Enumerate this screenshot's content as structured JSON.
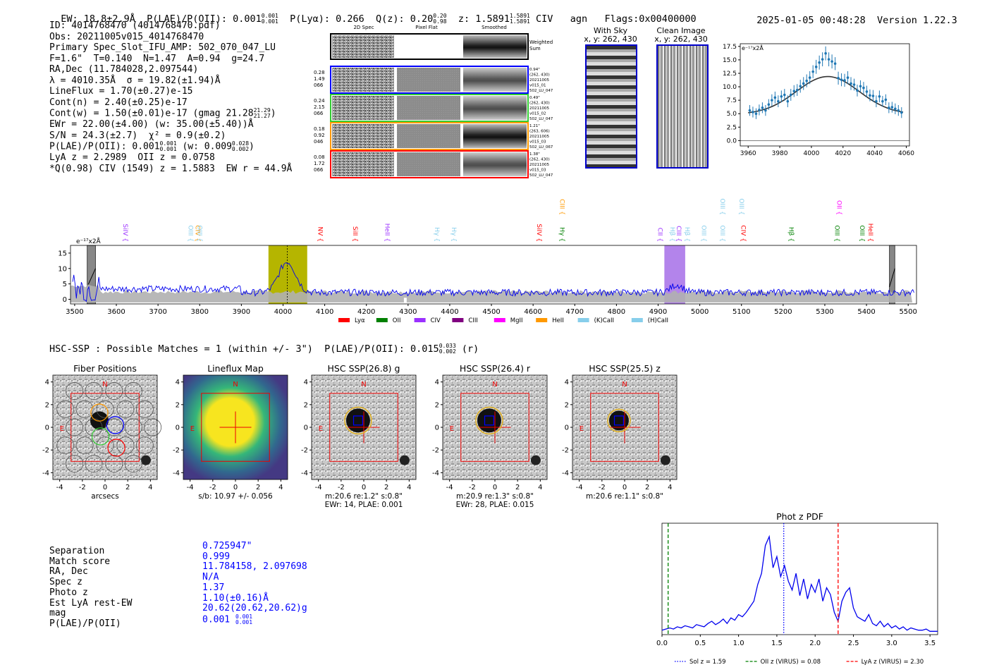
{
  "header": {
    "left": "EW: 18.8±2.9Å  P(LAE)/P(OII): 0.001",
    "plae_sup": "0.001",
    "plae_sub": "0.001",
    "lya": "  P(Lyα): 0.266  Q(z): 0.20",
    "qz_sup": "0.20",
    "qz_sub": "0.98",
    "z": "  z: 1.5891",
    "z_sup": "1.5891",
    "z_sub": "1.5891",
    "tail": " CIV   agn   Flags:0x00400000",
    "timestamp": "2025-01-05 00:48:28",
    "version": "Version 1.22.3"
  },
  "info": {
    "l1": "ID: 4014768470 (4014768470.pdf)",
    "l2": "Obs: 20211005v015_4014768470",
    "l3": "Primary Spec_Slot_IFU_AMP: 502_070_047_LU",
    "l4": "F=1.6\"  T=0.140  N=1.47  A=0.94  g=24.7",
    "l5": "RA,Dec (11.784028,2.097544)",
    "l6": "λ = 4010.35Å  σ = 19.82(±1.94)Å",
    "l7": "LineFlux = 1.70(±0.27)e-15",
    "l8": "Cont(n) = 2.40(±0.25)e-17",
    "l9": "Cont(w) = 1.50(±0.01)e-17 (gmag 21.28",
    "l9_sup": "21.29",
    "l9_sub": "21.27",
    "l10": "EWr = 22.00(±4.00) (w: 35.00(±5.40))Å",
    "l11": "S/N = 24.3(±2.7)  χ² = 0.9(±0.2)",
    "l12": "P(LAE)/P(OII): 0.001",
    "l12_sup": "0.001",
    "l12_sub": "0.001",
    "l12b": " (w: 0.009",
    "l12b_sup": "0.028",
    "l12b_sub": "0.002",
    "l13": "LyA z = 2.2989  OII z = 0.0758",
    "l14": "*Q(0.98) CIV (1549) z = 1.5883  EW r = 44.9Å"
  },
  "fiber_grid": {
    "col_headers": [
      "2D Spec",
      "Pixel Flat",
      "Smoothed"
    ],
    "weighted_label": "Weighted\nSum",
    "rows": [
      {
        "color": "#0000ff",
        "left": [
          "0.28",
          "1.49",
          "066"
        ],
        "right": [
          "0.94\"",
          "(262, 430)",
          "20211005",
          "v015_01",
          "502_LU_047"
        ]
      },
      {
        "color": "#33cc33",
        "left": [
          "0.24",
          "2.15",
          "066"
        ],
        "right": [
          "0.49\"",
          "(262, 430)",
          "20211005",
          "v015_02",
          "502_LU_047"
        ]
      },
      {
        "color": "#ff9900",
        "left": [
          "0.18",
          "0.92",
          "046"
        ],
        "right": [
          "1.21\"",
          "(263, 606)",
          "20211005",
          "v015_03",
          "502_LU_067"
        ]
      },
      {
        "color": "#ff0000",
        "left": [
          "0.08",
          "1.72",
          "066"
        ],
        "right": [
          "1.38\"",
          "(262, 430)",
          "20211005",
          "v015_03",
          "502_LU_047"
        ]
      }
    ]
  },
  "cutouts": {
    "with_sky": {
      "title": "With Sky",
      "coords": "x, y: 262, 430"
    },
    "clean": {
      "title": "Clean Image",
      "coords": "x, y: 262, 430"
    }
  },
  "line_fit": {
    "unit": "e⁻¹⁷x2Å",
    "xlim": [
      3955,
      4062
    ],
    "ylim": [
      -1,
      18
    ],
    "xticks": [
      3960,
      3980,
      4000,
      4020,
      4040,
      4060
    ],
    "yticks": [
      0.0,
      2.5,
      5.0,
      7.5,
      10.0,
      12.5,
      15.0,
      17.5
    ],
    "ytick_labels": [
      "0.0",
      "2.5",
      "5.0",
      "7.5",
      "10.0",
      "12.5",
      "15.0",
      "17.5"
    ],
    "model": {
      "amp": 7.0,
      "mu": 4010.35,
      "sigma": 19.82,
      "base": 4.9
    },
    "points": [
      [
        3961,
        5.6,
        1.0
      ],
      [
        3963,
        5.3,
        1.0
      ],
      [
        3965,
        5.0,
        1.0
      ],
      [
        3967,
        5.7,
        1.0
      ],
      [
        3969,
        6.1,
        1.0
      ],
      [
        3971,
        5.6,
        1.0
      ],
      [
        3973,
        6.7,
        1.0
      ],
      [
        3975,
        7.5,
        1.1
      ],
      [
        3977,
        8.0,
        1.1
      ],
      [
        3979,
        7.3,
        1.1
      ],
      [
        3981,
        8.2,
        1.1
      ],
      [
        3983,
        8.5,
        1.1
      ],
      [
        3985,
        7.3,
        1.1
      ],
      [
        3987,
        8.5,
        1.1
      ],
      [
        3989,
        9.2,
        1.1
      ],
      [
        3991,
        9.4,
        1.1
      ],
      [
        3993,
        10.1,
        1.2
      ],
      [
        3995,
        10.6,
        1.2
      ],
      [
        3997,
        11.1,
        1.2
      ],
      [
        3999,
        11.7,
        1.2
      ],
      [
        4001,
        12.8,
        1.2
      ],
      [
        4003,
        13.7,
        1.3
      ],
      [
        4005,
        14.5,
        1.3
      ],
      [
        4007,
        15.1,
        1.3
      ],
      [
        4009,
        16.2,
        1.3
      ],
      [
        4011,
        15.1,
        1.3
      ],
      [
        4013,
        14.7,
        1.3
      ],
      [
        4015,
        14.3,
        1.2
      ],
      [
        4017,
        11.6,
        1.2
      ],
      [
        4019,
        11.3,
        1.2
      ],
      [
        4021,
        11.2,
        1.2
      ],
      [
        4023,
        11.7,
        1.2
      ],
      [
        4025,
        10.6,
        1.2
      ],
      [
        4027,
        10.4,
        1.1
      ],
      [
        4029,
        9.3,
        1.1
      ],
      [
        4031,
        10.1,
        1.1
      ],
      [
        4033,
        9.8,
        1.1
      ],
      [
        4035,
        9.1,
        1.1
      ],
      [
        4037,
        8.4,
        1.1
      ],
      [
        4039,
        8.3,
        1.1
      ],
      [
        4041,
        7.3,
        1.1
      ],
      [
        4043,
        8.2,
        1.1
      ],
      [
        4045,
        7.3,
        1.0
      ],
      [
        4047,
        7.6,
        1.0
      ],
      [
        4049,
        6.1,
        1.0
      ],
      [
        4051,
        6.2,
        1.0
      ],
      [
        4053,
        5.9,
        1.0
      ],
      [
        4055,
        5.6,
        1.0
      ],
      [
        4057,
        5.2,
        1.0
      ]
    ]
  },
  "full_spectrum": {
    "unit": "e⁻¹⁷x2Å",
    "xlim": [
      3490,
      5520
    ],
    "ylim": [
      -1.5,
      17.5
    ],
    "xticks": [
      3500,
      3600,
      3700,
      3800,
      3900,
      4000,
      4100,
      4200,
      4300,
      4400,
      4500,
      4600,
      4700,
      4800,
      4900,
      5000,
      5100,
      5200,
      5300,
      5400,
      5500
    ],
    "yticks": [
      0,
      5,
      10,
      15
    ],
    "emission_band": [
      3965,
      4058
    ],
    "emission_center": 4010.35,
    "civ_band": [
      4915,
      4965
    ],
    "masked_bands": [
      [
        3530,
        3550
      ],
      [
        5455,
        5468
      ]
    ],
    "line_labels": [
      {
        "text": "SiIV",
        "x": 3617,
        "tier": 1,
        "color": "#9b30ff"
      },
      {
        "text": "OIII",
        "x": 3773,
        "tier": 1,
        "color": "#87ceeb"
      },
      {
        "text": "CIV",
        "x": 3790,
        "tier": 1,
        "color": "#ff9900"
      },
      {
        "text": "OIII",
        "x": 3795,
        "tier": 1,
        "color": "#87ceeb"
      },
      {
        "text": "NV",
        "x": 4085,
        "tier": 1,
        "color": "#ff0000"
      },
      {
        "text": "SiII",
        "x": 4168,
        "tier": 1,
        "color": "#ff0000"
      },
      {
        "text": "HeII",
        "x": 4245,
        "tier": 1,
        "color": "#9b30ff"
      },
      {
        "text": "Hγ",
        "x": 4365,
        "tier": 1,
        "color": "#87ceeb"
      },
      {
        "text": "Hγ",
        "x": 4405,
        "tier": 1,
        "color": "#87ceeb"
      },
      {
        "text": "SiIV",
        "x": 4610,
        "tier": 1,
        "color": "#ff0000"
      },
      {
        "text": "CIII",
        "x": 4665,
        "tier": 2,
        "color": "#ff9900"
      },
      {
        "text": "Hγ",
        "x": 4665,
        "tier": 1,
        "color": "#008000"
      },
      {
        "text": "CII",
        "x": 4900,
        "tier": 1,
        "color": "#9b30ff"
      },
      {
        "text": "Hβ",
        "x": 4930,
        "tier": 1,
        "color": "#87ceeb"
      },
      {
        "text": "CIII",
        "x": 4945,
        "tier": 1,
        "color": "#9b30ff"
      },
      {
        "text": "Hβ",
        "x": 4965,
        "tier": 1,
        "color": "#87ceeb"
      },
      {
        "text": "OIII",
        "x": 5005,
        "tier": 1,
        "color": "#87ceeb"
      },
      {
        "text": "OIII",
        "x": 5050,
        "tier": 1,
        "color": "#87ceeb"
      },
      {
        "text": "OIII",
        "x": 5050,
        "tier": 2,
        "color": "#87ceeb"
      },
      {
        "text": "OIII",
        "x": 5095,
        "tier": 2,
        "color": "#87ceeb"
      },
      {
        "text": "CIV",
        "x": 5100,
        "tier": 1,
        "color": "#ff0000"
      },
      {
        "text": "Hβ",
        "x": 5215,
        "tier": 1,
        "color": "#008000"
      },
      {
        "text": "OII",
        "x": 5330,
        "tier": 2,
        "color": "#ff00ff"
      },
      {
        "text": "OIII",
        "x": 5325,
        "tier": 1,
        "color": "#008000"
      },
      {
        "text": "OIII",
        "x": 5385,
        "tier": 1,
        "color": "#008000"
      },
      {
        "text": "HeII",
        "x": 5405,
        "tier": 1,
        "color": "#ff0000"
      }
    ],
    "legend": [
      {
        "label": "Lyα",
        "color": "#ff0000"
      },
      {
        "label": "OII",
        "color": "#008000"
      },
      {
        "label": "CIV",
        "color": "#9b30ff"
      },
      {
        "label": "CIII",
        "color": "#800080"
      },
      {
        "label": "MgII",
        "color": "#ff00ff"
      },
      {
        "label": "HeII",
        "color": "#ff9900"
      },
      {
        "label": "(K)CaII",
        "color": "#87ceeb"
      },
      {
        "label": "(H)CaII",
        "color": "#87ceeb"
      }
    ]
  },
  "hsc": {
    "header": "HSC-SSP : Possible Matches = 1 (within +/- 3\")  P(LAE)/P(OII): 0.015",
    "plae_sup": "0.033",
    "plae_sub": "0.002",
    "header_tail": " (r)",
    "axis_ticks": [
      -4,
      -2,
      0,
      2,
      4
    ],
    "panels": [
      {
        "title": "Fiber Positions",
        "caption": [
          "arcsecs"
        ]
      },
      {
        "title": "Lineflux Map",
        "caption": [
          "s/b: 10.97 +/- 0.056"
        ]
      },
      {
        "title": "HSC SSP(26.8) g",
        "caption": [
          "m:20.6  re:1.2\"  s:0.8\"",
          "EWr: 14, PLAE: 0.001"
        ]
      },
      {
        "title": "HSC SSP(26.4) r",
        "caption": [
          "m:20.9  re:1.3\"  s:0.8\"",
          "EWr: 28, PLAE: 0.015"
        ]
      },
      {
        "title": "HSC SSP(25.5) z",
        "caption": [
          "m:20.6  re:1.1\"  s:0.8\""
        ]
      }
    ],
    "n_label": "N",
    "e_label": "E"
  },
  "match_table": {
    "labels": [
      "Separation",
      "Match score",
      "RA, Dec",
      "Spec z",
      "Photo z",
      "Est LyA rest-EW",
      "mag",
      "P(LAE)/P(OII)"
    ],
    "values": [
      "0.725947\"",
      "0.999",
      "11.784158, 2.097698",
      "N/A",
      "1.37",
      "1.10(±0.16)Å",
      "20.62(20.62,20.62)g",
      "0.001"
    ],
    "plae_sup": "0.001",
    "plae_sub": "0.001"
  },
  "chart_data": {
    "type": "line",
    "title": "Phot z PDF",
    "xlim": [
      0,
      3.6
    ],
    "xticks": [
      0.0,
      0.5,
      1.0,
      1.5,
      2.0,
      2.5,
      3.0,
      3.5
    ],
    "xtick_labels": [
      "0.0",
      "0.5",
      "1.0",
      "1.5",
      "2.0",
      "2.5",
      "3.0",
      "3.5"
    ],
    "ylim": [
      0,
      1.0
    ],
    "x": [
      0.0,
      0.05,
      0.1,
      0.15,
      0.2,
      0.25,
      0.3,
      0.35,
      0.4,
      0.45,
      0.5,
      0.55,
      0.6,
      0.65,
      0.7,
      0.75,
      0.8,
      0.85,
      0.9,
      0.95,
      1.0,
      1.05,
      1.1,
      1.15,
      1.2,
      1.25,
      1.3,
      1.35,
      1.4,
      1.45,
      1.5,
      1.55,
      1.6,
      1.65,
      1.7,
      1.75,
      1.8,
      1.85,
      1.9,
      1.95,
      2.0,
      2.05,
      2.1,
      2.15,
      2.2,
      2.25,
      2.3,
      2.35,
      2.4,
      2.45,
      2.5,
      2.55,
      2.6,
      2.65,
      2.7,
      2.75,
      2.8,
      2.85,
      2.9,
      2.95,
      3.0,
      3.05,
      3.1,
      3.15,
      3.2,
      3.25,
      3.3,
      3.35,
      3.4,
      3.45,
      3.5,
      3.55,
      3.6
    ],
    "y": [
      0.04,
      0.05,
      0.06,
      0.05,
      0.07,
      0.06,
      0.08,
      0.07,
      0.06,
      0.09,
      0.08,
      0.07,
      0.1,
      0.12,
      0.09,
      0.11,
      0.14,
      0.1,
      0.15,
      0.13,
      0.18,
      0.16,
      0.2,
      0.25,
      0.3,
      0.45,
      0.55,
      0.8,
      0.88,
      0.6,
      0.7,
      0.52,
      0.62,
      0.48,
      0.4,
      0.55,
      0.35,
      0.5,
      0.32,
      0.45,
      0.38,
      0.5,
      0.3,
      0.42,
      0.36,
      0.2,
      0.12,
      0.3,
      0.38,
      0.42,
      0.24,
      0.16,
      0.14,
      0.12,
      0.18,
      0.1,
      0.08,
      0.12,
      0.07,
      0.1,
      0.06,
      0.08,
      0.05,
      0.07,
      0.04,
      0.06,
      0.05,
      0.04,
      0.04,
      0.05,
      0.03,
      0.03,
      0.03
    ],
    "vlines": [
      {
        "x": 1.59,
        "color": "#0000ff",
        "style": "dotted",
        "label": "Sol z = 1.59"
      },
      {
        "x": 0.08,
        "color": "#008000",
        "style": "dashed",
        "label": "OII z (VIRUS) = 0.08"
      },
      {
        "x": 2.3,
        "color": "#ff0000",
        "style": "dashed",
        "label": "LyA z (VIRUS) = 2.30"
      }
    ]
  }
}
